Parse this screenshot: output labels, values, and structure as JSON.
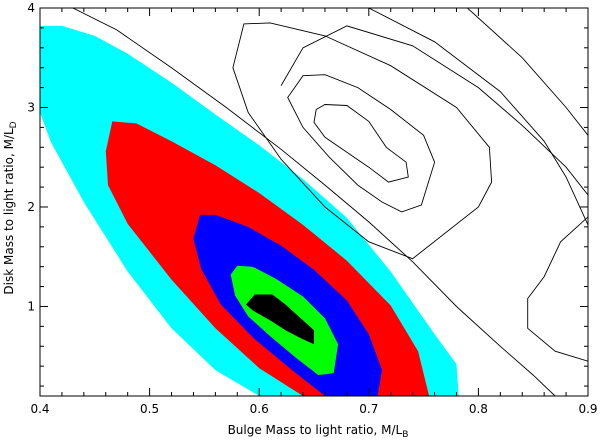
{
  "chart_data": {
    "type": "contour",
    "xlabel": "Bulge Mass to light ratio, M/L",
    "xlabel_sub": "B",
    "ylabel": "Disk Mass to light ratio, M/L",
    "ylabel_sub": "D",
    "xlim": [
      0.4,
      0.9
    ],
    "ylim": [
      0.1,
      4.0
    ],
    "xticks": [
      0.4,
      0.5,
      0.6,
      0.7,
      0.8,
      0.9
    ],
    "xtick_labels": [
      "0.4",
      "0.5",
      "0.6",
      "0.7",
      "0.8",
      "0.9"
    ],
    "yticks": [
      1,
      2,
      3,
      4
    ],
    "ytick_labels": [
      "1",
      "2",
      "3",
      "4"
    ],
    "grid": false,
    "filled_contours": [
      {
        "color": "#00ffff",
        "points": [
          [
            0.4,
            3.82
          ],
          [
            0.42,
            3.82
          ],
          [
            0.45,
            3.72
          ],
          [
            0.48,
            3.54
          ],
          [
            0.52,
            3.25
          ],
          [
            0.56,
            2.93
          ],
          [
            0.6,
            2.62
          ],
          [
            0.64,
            2.28
          ],
          [
            0.68,
            1.89
          ],
          [
            0.72,
            1.35
          ],
          [
            0.76,
            0.72
          ],
          [
            0.78,
            0.42
          ],
          [
            0.782,
            0.1
          ],
          [
            0.6,
            0.1
          ],
          [
            0.56,
            0.36
          ],
          [
            0.52,
            0.78
          ],
          [
            0.48,
            1.35
          ],
          [
            0.44,
            2.05
          ],
          [
            0.41,
            2.65
          ],
          [
            0.4,
            2.95
          ]
        ]
      },
      {
        "color": "#ff0000",
        "points": [
          [
            0.466,
            2.86
          ],
          [
            0.488,
            2.84
          ],
          [
            0.52,
            2.66
          ],
          [
            0.56,
            2.42
          ],
          [
            0.6,
            2.14
          ],
          [
            0.64,
            1.82
          ],
          [
            0.68,
            1.46
          ],
          [
            0.72,
            1.01
          ],
          [
            0.745,
            0.55
          ],
          [
            0.755,
            0.1
          ],
          [
            0.64,
            0.1
          ],
          [
            0.6,
            0.38
          ],
          [
            0.56,
            0.78
          ],
          [
            0.52,
            1.27
          ],
          [
            0.48,
            1.83
          ],
          [
            0.462,
            2.22
          ],
          [
            0.46,
            2.56
          ]
        ]
      },
      {
        "color": "#0000ff",
        "points": [
          [
            0.546,
            1.92
          ],
          [
            0.56,
            1.92
          ],
          [
            0.59,
            1.8
          ],
          [
            0.62,
            1.61
          ],
          [
            0.65,
            1.37
          ],
          [
            0.68,
            1.06
          ],
          [
            0.7,
            0.72
          ],
          [
            0.712,
            0.36
          ],
          [
            0.708,
            0.1
          ],
          [
            0.66,
            0.1
          ],
          [
            0.63,
            0.36
          ],
          [
            0.595,
            0.68
          ],
          [
            0.565,
            1.02
          ],
          [
            0.547,
            1.38
          ],
          [
            0.54,
            1.68
          ]
        ]
      },
      {
        "color": "#00ff00",
        "points": [
          [
            0.58,
            1.41
          ],
          [
            0.594,
            1.4
          ],
          [
            0.615,
            1.28
          ],
          [
            0.64,
            1.1
          ],
          [
            0.66,
            0.88
          ],
          [
            0.672,
            0.62
          ],
          [
            0.668,
            0.33
          ],
          [
            0.654,
            0.31
          ],
          [
            0.634,
            0.48
          ],
          [
            0.61,
            0.7
          ],
          [
            0.59,
            0.9
          ],
          [
            0.578,
            1.11
          ],
          [
            0.574,
            1.32
          ]
        ]
      },
      {
        "color": "#000000",
        "points": [
          [
            0.596,
            1.12
          ],
          [
            0.612,
            1.12
          ],
          [
            0.624,
            1.02
          ],
          [
            0.638,
            0.88
          ],
          [
            0.65,
            0.76
          ],
          [
            0.65,
            0.62
          ],
          [
            0.638,
            0.68
          ],
          [
            0.624,
            0.76
          ],
          [
            0.61,
            0.86
          ],
          [
            0.594,
            0.96
          ],
          [
            0.588,
            1.02
          ]
        ]
      }
    ],
    "line_contours": [
      {
        "closed": true,
        "points": [
          [
            0.66,
            3.03
          ],
          [
            0.68,
            3.02
          ],
          [
            0.7,
            2.86
          ],
          [
            0.716,
            2.6
          ],
          [
            0.734,
            2.45
          ],
          [
            0.736,
            2.3
          ],
          [
            0.718,
            2.25
          ],
          [
            0.7,
            2.4
          ],
          [
            0.68,
            2.55
          ],
          [
            0.66,
            2.7
          ],
          [
            0.65,
            2.85
          ],
          [
            0.652,
            2.98
          ]
        ]
      },
      {
        "closed": true,
        "points": [
          [
            0.64,
            3.32
          ],
          [
            0.66,
            3.33
          ],
          [
            0.69,
            3.2
          ],
          [
            0.72,
            2.98
          ],
          [
            0.75,
            2.72
          ],
          [
            0.76,
            2.45
          ],
          [
            0.748,
            2.02
          ],
          [
            0.73,
            1.95
          ],
          [
            0.712,
            2.05
          ],
          [
            0.69,
            2.22
          ],
          [
            0.664,
            2.5
          ],
          [
            0.64,
            2.8
          ],
          [
            0.626,
            3.1
          ]
        ]
      },
      {
        "closed": true,
        "points": [
          [
            0.586,
            3.84
          ],
          [
            0.61,
            3.85
          ],
          [
            0.66,
            3.72
          ],
          [
            0.72,
            3.42
          ],
          [
            0.78,
            3.0
          ],
          [
            0.81,
            2.6
          ],
          [
            0.812,
            2.25
          ],
          [
            0.8,
            2.0
          ],
          [
            0.74,
            1.48
          ],
          [
            0.7,
            1.65
          ],
          [
            0.66,
            2.0
          ],
          [
            0.62,
            2.48
          ],
          [
            0.59,
            2.95
          ],
          [
            0.576,
            3.4
          ]
        ]
      },
      {
        "closed": false,
        "points": [
          [
            0.43,
            4.0
          ],
          [
            0.47,
            3.78
          ],
          [
            0.52,
            3.4
          ],
          [
            0.57,
            3.0
          ],
          [
            0.62,
            2.58
          ],
          [
            0.66,
            2.22
          ],
          [
            0.7,
            1.85
          ],
          [
            0.74,
            1.45
          ],
          [
            0.78,
            1.0
          ],
          [
            0.82,
            0.6
          ],
          [
            0.85,
            0.31
          ],
          [
            0.87,
            0.1
          ]
        ]
      },
      {
        "closed": false,
        "points": [
          [
            0.7,
            4.0
          ],
          [
            0.76,
            3.66
          ],
          [
            0.82,
            3.16
          ],
          [
            0.86,
            2.66
          ],
          [
            0.88,
            2.3
          ],
          [
            0.9,
            1.82
          ]
        ]
      },
      {
        "closed": false,
        "points": [
          [
            0.79,
            4.0
          ],
          [
            0.84,
            3.5
          ],
          [
            0.88,
            3.0
          ],
          [
            0.9,
            2.72
          ]
        ]
      },
      {
        "closed": false,
        "points": [
          [
            0.62,
            3.22
          ],
          [
            0.64,
            3.6
          ],
          [
            0.68,
            3.82
          ],
          [
            0.74,
            3.62
          ],
          [
            0.8,
            3.2
          ],
          [
            0.84,
            2.82
          ],
          [
            0.88,
            2.4
          ],
          [
            0.9,
            2.12
          ]
        ]
      },
      {
        "closed": false,
        "points": [
          [
            0.9,
            1.9
          ],
          [
            0.875,
            1.65
          ],
          [
            0.86,
            1.3
          ],
          [
            0.845,
            1.08
          ],
          [
            0.845,
            0.78
          ],
          [
            0.87,
            0.55
          ],
          [
            0.9,
            0.45
          ]
        ]
      }
    ]
  }
}
